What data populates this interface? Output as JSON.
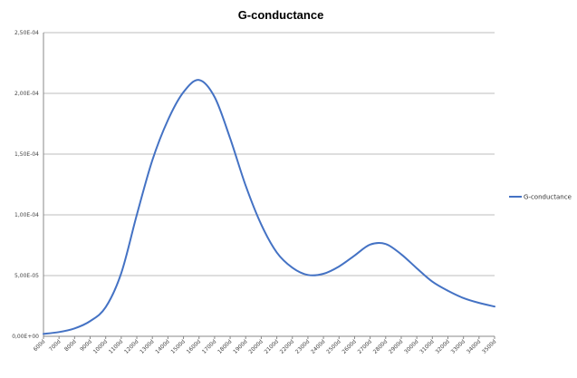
{
  "chart_data": {
    "type": "line",
    "title": "G-conductance",
    "xlabel": "",
    "ylabel": "",
    "ylim": [
      0,
      0.00025
    ],
    "y_ticks": [
      "0,00E+00",
      "5,00E-05",
      "1,00E-04",
      "1,50E-04",
      "2,00E-04",
      "2,50E-04"
    ],
    "y_tick_values": [
      0,
      5e-05,
      0.0001,
      0.00015,
      0.0002,
      0.00025
    ],
    "categories": [
      "600d",
      "700d",
      "800d",
      "900d",
      "1000d",
      "1100d",
      "1200d",
      "1300d",
      "1400d",
      "1500d",
      "1600d",
      "1700d",
      "1800d",
      "1900d",
      "2000d",
      "2100d",
      "2200d",
      "2300d",
      "2400d",
      "2500d",
      "2600d",
      "2700d",
      "2800d",
      "2900d",
      "3000d",
      "3100d",
      "3200d",
      "3300d",
      "3400d",
      "3500d"
    ],
    "series": [
      {
        "name": "G-conductance",
        "color": "#4472C4",
        "values": [
          2e-06,
          3.5e-06,
          6.5e-06,
          1.25e-05,
          2.4e-05,
          5.2e-05,
          0.0001,
          0.000145,
          0.000178,
          0.000201,
          0.000211,
          0.000197,
          0.000163,
          0.000124,
          9.2e-05,
          6.9e-05,
          5.65e-05,
          5.05e-05,
          5.15e-05,
          5.75e-05,
          6.65e-05,
          7.55e-05,
          7.6e-05,
          6.75e-05,
          5.6e-05,
          4.5e-05,
          3.75e-05,
          3.15e-05,
          2.75e-05,
          2.45e-05
        ]
      }
    ],
    "grid": "horizontal",
    "legend_position": "right"
  }
}
